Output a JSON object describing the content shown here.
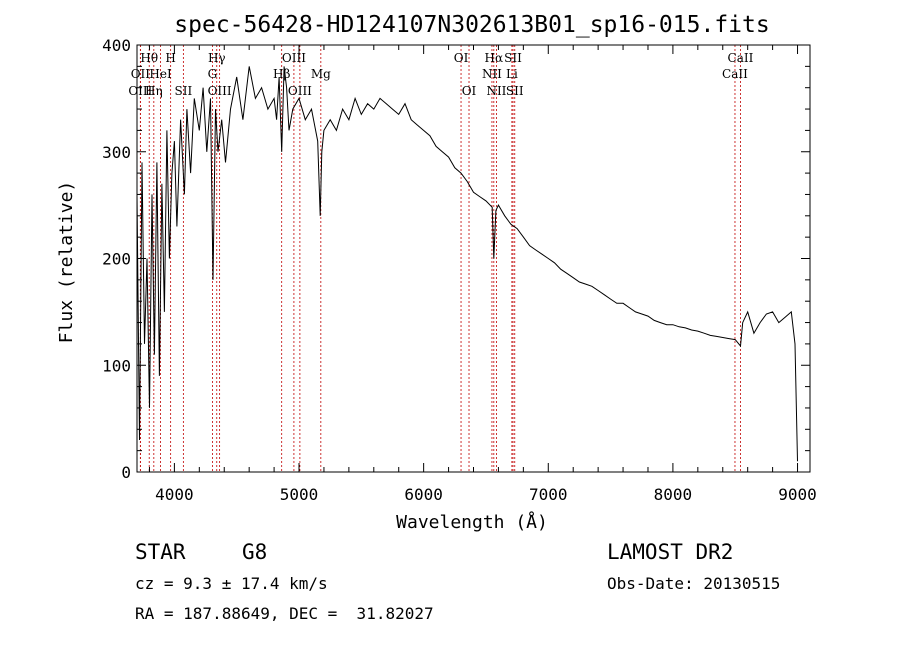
{
  "chart_data": {
    "type": "line",
    "title": "spec-56428-HD124107N302613B01_sp16-015.fits",
    "xlabel": "Wavelength (Å)",
    "ylabel": "Flux (relative)",
    "xlim": [
      3700,
      9100
    ],
    "ylim": [
      0,
      400
    ],
    "xticks": [
      "4000",
      "5000",
      "6000",
      "7000",
      "8000",
      "9000"
    ],
    "yticks": [
      "0",
      "100",
      "200",
      "300",
      "400"
    ],
    "grid": false,
    "series": [
      {
        "x": [
          3700,
          3720,
          3740,
          3760,
          3780,
          3800,
          3820,
          3840,
          3860,
          3880,
          3900,
          3920,
          3940,
          3960,
          3980,
          4000,
          4020,
          4050,
          4080,
          4100,
          4130,
          4160,
          4200,
          4230,
          4260,
          4290,
          4310,
          4330,
          4350,
          4380,
          4410,
          4450,
          4500,
          4550,
          4600,
          4650,
          4700,
          4750,
          4800,
          4820,
          4840,
          4861,
          4880,
          4900,
          4920,
          4950,
          5000,
          5050,
          5100,
          5150,
          5170,
          5183,
          5200,
          5250,
          5300,
          5350,
          5400,
          5450,
          5500,
          5550,
          5600,
          5650,
          5700,
          5750,
          5800,
          5850,
          5900,
          5950,
          6000,
          6050,
          6100,
          6150,
          6200,
          6250,
          6300,
          6350,
          6400,
          6450,
          6500,
          6550,
          6563,
          6580,
          6600,
          6650,
          6700,
          6750,
          6800,
          6850,
          6900,
          6950,
          7000,
          7050,
          7100,
          7150,
          7200,
          7250,
          7300,
          7350,
          7400,
          7450,
          7500,
          7550,
          7600,
          7650,
          7700,
          7750,
          7800,
          7850,
          7900,
          7950,
          8000,
          8050,
          8100,
          8150,
          8200,
          8250,
          8300,
          8350,
          8400,
          8450,
          8500,
          8542,
          8560,
          8600,
          8650,
          8700,
          8750,
          8800,
          8850,
          8900,
          8950,
          8980,
          9000
        ],
        "values": [
          260,
          30,
          290,
          120,
          200,
          60,
          260,
          110,
          290,
          90,
          270,
          150,
          320,
          200,
          280,
          310,
          230,
          330,
          260,
          340,
          280,
          350,
          320,
          360,
          300,
          350,
          180,
          340,
          300,
          330,
          290,
          340,
          370,
          330,
          380,
          350,
          360,
          340,
          350,
          330,
          370,
          300,
          380,
          360,
          320,
          340,
          350,
          330,
          340,
          310,
          240,
          300,
          320,
          330,
          320,
          340,
          330,
          350,
          335,
          345,
          340,
          350,
          345,
          340,
          335,
          345,
          330,
          325,
          320,
          315,
          305,
          300,
          295,
          285,
          280,
          272,
          262,
          258,
          254,
          248,
          200,
          245,
          250,
          240,
          232,
          228,
          220,
          212,
          208,
          204,
          200,
          196,
          190,
          186,
          182,
          178,
          176,
          174,
          170,
          166,
          162,
          158,
          158,
          154,
          150,
          148,
          146,
          142,
          140,
          138,
          138,
          136,
          135,
          133,
          132,
          130,
          128,
          127,
          126,
          125,
          124,
          118,
          140,
          150,
          130,
          140,
          148,
          150,
          140,
          145,
          150,
          120,
          10
        ]
      }
    ],
    "spectral_lines": [
      {
        "label": "Hθ",
        "x": 3798,
        "label_y": 0
      },
      {
        "label": "OII",
        "x": 3727,
        "label_y": 1
      },
      {
        "label": "OIII",
        "x": 3727,
        "label_y": 2
      },
      {
        "label": "H",
        "x": 3970,
        "label_y": 0
      },
      {
        "label": "HeI",
        "x": 3889,
        "label_y": 1
      },
      {
        "label": "Hη",
        "x": 3835,
        "label_y": 2
      },
      {
        "label": "SII",
        "x": 4072,
        "label_y": 2
      },
      {
        "label": "Hγ",
        "x": 4340,
        "label_y": 0
      },
      {
        "label": "G",
        "x": 4305,
        "label_y": 1
      },
      {
        "label": "OIII",
        "x": 4363,
        "label_y": 2
      },
      {
        "label": "OIII",
        "x": 4959,
        "label_y": 0
      },
      {
        "label": "Hβ",
        "x": 4861,
        "label_y": 1
      },
      {
        "label": "OIII",
        "x": 5007,
        "label_y": 2
      },
      {
        "label": "Mg",
        "x": 5175,
        "label_y": 1
      },
      {
        "label": "OI",
        "x": 6300,
        "label_y": 0
      },
      {
        "label": "OI",
        "x": 6364,
        "label_y": 2
      },
      {
        "label": "Hα",
        "x": 6563,
        "label_y": 0
      },
      {
        "label": "SII",
        "x": 6717,
        "label_y": 0
      },
      {
        "label": "NII",
        "x": 6548,
        "label_y": 1
      },
      {
        "label": "Li",
        "x": 6708,
        "label_y": 1
      },
      {
        "label": "NII",
        "x": 6584,
        "label_y": 2
      },
      {
        "label": "SII",
        "x": 6731,
        "label_y": 2
      },
      {
        "label": "CaII",
        "x": 8542,
        "label_y": 0
      },
      {
        "label": "CaII",
        "x": 8498,
        "label_y": 1
      }
    ],
    "line_color": "#000000",
    "marker_color": "#c00000"
  },
  "info": {
    "object_class": "STAR",
    "subclass": "G8",
    "survey": "LAMOST DR2",
    "cz": "cz = 9.3 ± 17.4 km/s",
    "obs_date": "Obs-Date: 20130515",
    "coords": "RA = 187.88649, DEC =  31.82027"
  }
}
